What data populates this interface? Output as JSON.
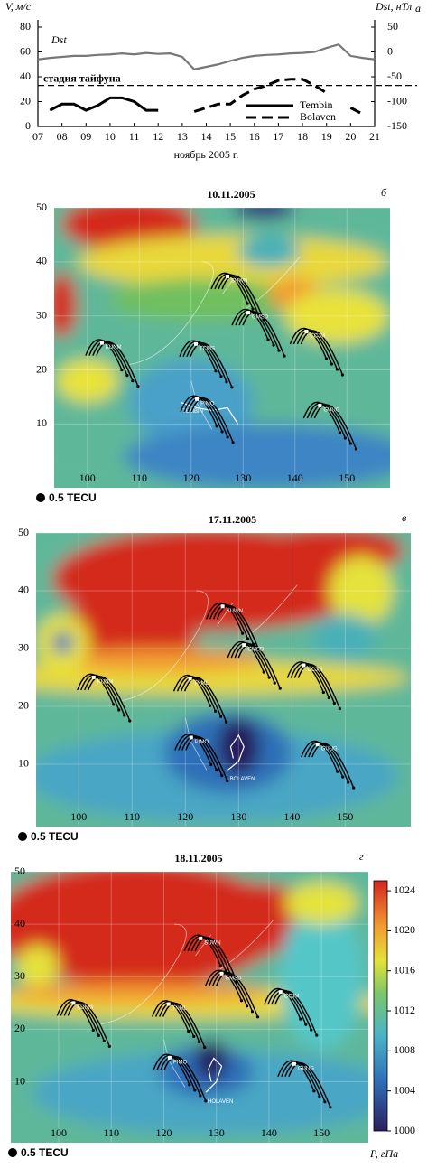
{
  "chart_data": [
    {
      "type": "line",
      "panel_label": "а",
      "y_label": "V, м/с",
      "y2_label": "Dst, нТл",
      "x_label": "ноябрь 2005 г.",
      "annotation": "Dst",
      "stage": {
        "label": "стадия тайфуна",
        "value": 33
      },
      "xlim": [
        7,
        21
      ],
      "xticks": [
        {
          "value": 7,
          "label": "07"
        },
        {
          "value": 8,
          "label": "08"
        },
        {
          "value": 9,
          "label": "09"
        },
        10,
        11,
        12,
        13,
        14,
        15,
        16,
        17,
        18,
        19,
        20,
        21
      ],
      "ylim": [
        0,
        80
      ],
      "yticks": [
        0,
        20,
        40,
        60,
        80
      ],
      "y2lim": [
        -150,
        50
      ],
      "y2ticks": [
        -150,
        -100,
        -50,
        0,
        50
      ],
      "x": [
        7,
        7.5,
        8,
        8.5,
        9,
        9.5,
        10,
        10.5,
        11,
        11.5,
        12,
        12.5,
        13,
        13.5,
        14,
        14.5,
        15,
        15.5,
        16,
        16.5,
        17,
        17.5,
        18,
        18.5,
        19,
        19.5,
        20,
        20.5,
        21
      ],
      "series": [
        {
          "name": "Dst",
          "color": "#777777",
          "style": "solid",
          "axis": "y2",
          "values": [
            -15,
            -12,
            -10,
            -8,
            -8,
            -6,
            -5,
            -3,
            -5,
            -2,
            -4,
            -3,
            -10,
            -35,
            -30,
            -25,
            -18,
            -12,
            -8,
            -6,
            -5,
            -3,
            -2,
            0,
            8,
            15,
            -8,
            -12,
            -15
          ]
        },
        {
          "name": "Tembin",
          "color": "#000000",
          "style": "solid",
          "legend": true,
          "values": [
            null,
            13,
            18,
            18,
            13,
            17,
            23,
            23,
            20,
            13,
            13,
            null,
            null,
            null,
            null,
            null,
            null,
            null,
            null,
            null,
            null,
            null,
            null,
            null,
            null,
            null,
            null,
            null,
            null
          ]
        },
        {
          "name": "Bolaven",
          "color": "#000000",
          "style": "dashed",
          "legend": true,
          "values": [
            null,
            null,
            null,
            null,
            null,
            null,
            null,
            null,
            null,
            null,
            null,
            null,
            null,
            12,
            15,
            18,
            18,
            25,
            30,
            33,
            37,
            38,
            38,
            33,
            27,
            null,
            15,
            10,
            null
          ]
        }
      ]
    },
    {
      "type": "map",
      "title": "10.11.2005",
      "panel_label": "б",
      "tecu_legend": "0.5 TECU",
      "xlim": [
        93.6,
        158.3
      ],
      "xticks": [
        100,
        110,
        120,
        130,
        140,
        150
      ],
      "ylim": [
        -1.8,
        50
      ],
      "yticks": [
        10,
        20,
        30,
        40,
        50
      ],
      "stations": [
        {
          "name": "KUNM",
          "lon": 102.8,
          "lat": 25
        },
        {
          "name": "TCMS",
          "lon": 120.9,
          "lat": 24.8
        },
        {
          "name": "PIMO",
          "lon": 121.1,
          "lat": 14.6
        },
        {
          "name": "SUWN",
          "lon": 127,
          "lat": 37.3
        },
        {
          "name": "GMSD",
          "lon": 131,
          "lat": 30.6
        },
        {
          "name": "CCJM",
          "lon": 142.2,
          "lat": 27.1
        },
        {
          "name": "GUUG",
          "lon": 144.8,
          "lat": 13.4
        }
      ],
      "typhoon": {
        "name": "TEMBIN",
        "lon": [
          118,
          121,
          124,
          127,
          129
        ],
        "lat": [
          14,
          13,
          12.5,
          13,
          10
        ]
      }
    },
    {
      "type": "map",
      "title": "17.11.2005",
      "panel_label": "в",
      "tecu_legend": "0.5 TECU",
      "xlim": [
        92,
        162.3
      ],
      "xticks": [
        100,
        110,
        120,
        130,
        140,
        150
      ],
      "ylim": [
        -0.8,
        50
      ],
      "yticks": [
        10,
        20,
        30,
        40,
        50
      ],
      "stations": [
        {
          "name": "KUNM",
          "lon": 102.8,
          "lat": 25
        },
        {
          "name": "TNML",
          "lon": 120.9,
          "lat": 24.8
        },
        {
          "name": "PIMO",
          "lon": 121.1,
          "lat": 14.6
        },
        {
          "name": "SUWN",
          "lon": 127,
          "lat": 37.3
        },
        {
          "name": "GMSD",
          "lon": 131,
          "lat": 30.6
        },
        {
          "name": "CCJM",
          "lon": 142.2,
          "lat": 27.1
        },
        {
          "name": "GUUG",
          "lon": 144.8,
          "lat": 13.4
        }
      ],
      "typhoon": {
        "name": "BOLAVEN",
        "lon": [
          128,
          130,
          131,
          130,
          128.5,
          129
        ],
        "lat": [
          9,
          10.5,
          13,
          15,
          13,
          11
        ]
      }
    },
    {
      "type": "map",
      "title": "18.11.2005",
      "panel_label": "г",
      "tecu_legend": "0.5 TECU",
      "xlim": [
        90.9,
        158.9
      ],
      "xticks": [
        100,
        110,
        120,
        130,
        140,
        150
      ],
      "ylim": [
        -1.6,
        50
      ],
      "yticks": [
        10,
        20,
        30,
        40,
        50
      ],
      "stations": [
        {
          "name": "KUNM",
          "lon": 102.8,
          "lat": 25
        },
        {
          "name": "TNML",
          "lon": 120.9,
          "lat": 24.8
        },
        {
          "name": "PIMO",
          "lon": 121.1,
          "lat": 14.6
        },
        {
          "name": "SUWN",
          "lon": 127,
          "lat": 37.3
        },
        {
          "name": "GMSD",
          "lon": 131,
          "lat": 30.6
        },
        {
          "name": "CCJM",
          "lon": 142.2,
          "lat": 27.1
        },
        {
          "name": "GUUG",
          "lon": 144.8,
          "lat": 13.4
        }
      ],
      "typhoon": {
        "name": "HOLAVEN",
        "lon": [
          128,
          130,
          131,
          129.5,
          128.5,
          129
        ],
        "lat": [
          8,
          10,
          13,
          14.5,
          12.5,
          10
        ]
      },
      "colorbar": {
        "label": "P, гПа",
        "lim": [
          1000,
          1025
        ],
        "ticks": [
          1000,
          1004,
          1008,
          1012,
          1016,
          1020,
          1024
        ]
      }
    }
  ]
}
